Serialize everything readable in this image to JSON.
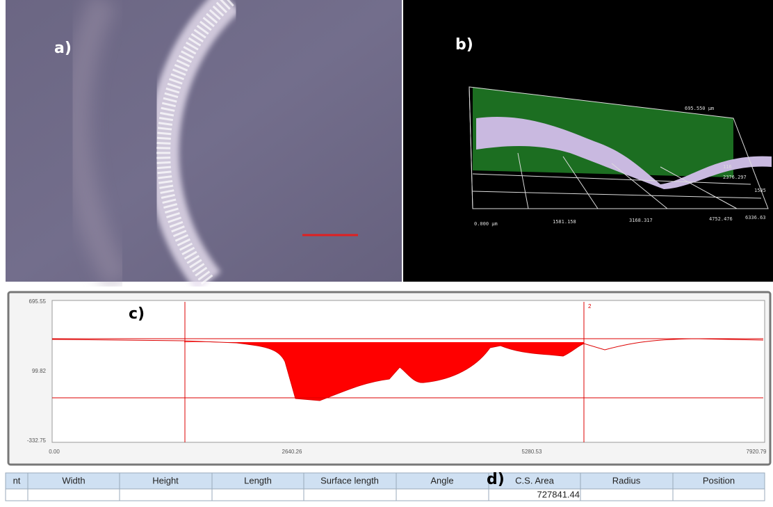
{
  "panels": {
    "a": {
      "label": "a)"
    },
    "b": {
      "label": "b)",
      "axis_labels": [
        "0.000 µm",
        "1581.158",
        "3168.317",
        "4752.476",
        "6336.63",
        "695.550 µm",
        "2376.297",
        "116",
        "1585"
      ]
    },
    "c": {
      "label": "c)",
      "y_ticks": [
        "695.55",
        "99.82",
        "-332.75"
      ],
      "x_ticks": [
        "0.00",
        "2640.26",
        "5280.53",
        "7920.79"
      ],
      "marker": "2"
    },
    "d": {
      "label": "d)"
    }
  },
  "table": {
    "headers": [
      "nt",
      "Width",
      "Height",
      "Length",
      "Surface length",
      "Angle",
      "C.S. Area",
      "Radius",
      "Position"
    ],
    "cs_area": "727841.44"
  }
}
